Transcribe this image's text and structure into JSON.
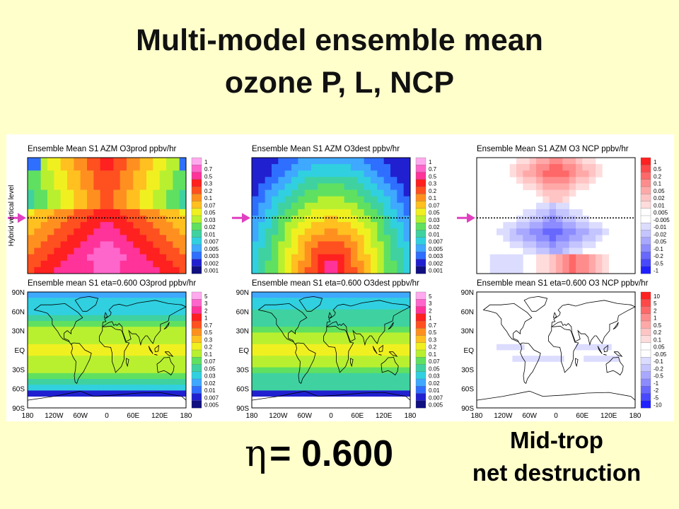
{
  "slide": {
    "title_line1": "Multi-model ensemble mean",
    "title_line2": "ozone P, L, NCP",
    "eta_symbol": "η",
    "eta_text": "= 0.600",
    "note_line1": "Mid-trop",
    "note_line2": "net destruction"
  },
  "colors": {
    "background": "#ffffcc",
    "arrow": "#e040c0",
    "seq_palette": [
      "#101080",
      "#2020d0",
      "#2f6fff",
      "#3fa8ff",
      "#30d0e0",
      "#3fd2a0",
      "#60e060",
      "#b8f030",
      "#f0f020",
      "#ffc020",
      "#ff9020",
      "#ff5020",
      "#ff2020",
      "#ff3399",
      "#ff66cc",
      "#ffaaee"
    ],
    "div_palette": [
      "#2020ff",
      "#4848ff",
      "#6868ff",
      "#8c8cff",
      "#a8a8ff",
      "#c4c4ff",
      "#dcdcff",
      "#ffffff",
      "#ffdcdc",
      "#ffc4c4",
      "#ffa8a8",
      "#ff8c8c",
      "#ff6868",
      "#ff4848",
      "#ff2020"
    ]
  },
  "chart_data": [
    {
      "id": "p1",
      "type": "heatmap",
      "title": "Ensemble Mean S1 AZM O3prod ppbv/hr",
      "ylabel": "Hybrid vertical level",
      "colorbar": [
        "1",
        "0.7",
        "0.5",
        "0.3",
        "0.2",
        "0.1",
        "0.07",
        "0.05",
        "0.03",
        "0.02",
        "0.01",
        "0.007",
        "0.005",
        "0.003",
        "0.002",
        "0.001"
      ],
      "palette": "seq",
      "pattern": "azm-prod",
      "reference_line": "eta=0.600"
    },
    {
      "id": "p2",
      "type": "heatmap",
      "title": "Ensemble Mean S1 AZM O3dest ppbv/hr",
      "colorbar": [
        "1",
        "0.7",
        "0.5",
        "0.3",
        "0.2",
        "0.1",
        "0.07",
        "0.05",
        "0.03",
        "0.02",
        "0.01",
        "0.007",
        "0.005",
        "0.003",
        "0.002",
        "0.001"
      ],
      "palette": "seq",
      "pattern": "azm-dest",
      "reference_line": "eta=0.600"
    },
    {
      "id": "p3",
      "type": "heatmap",
      "title": "Ensemble Mean S1 AZM O3 NCP ppbv/hr",
      "colorbar": [
        "1",
        "0.5",
        "0.2",
        "0.1",
        "0.05",
        "0.02",
        "0.01",
        "0.005",
        "-0.005",
        "-0.01",
        "-0.02",
        "-0.05",
        "-0.1",
        "-0.2",
        "-0.5",
        "-1"
      ],
      "palette": "div",
      "pattern": "azm-ncp",
      "reference_line": "eta=0.600"
    },
    {
      "id": "p4",
      "type": "heatmap",
      "title": "Ensemble mean S1 eta=0.600 O3prod ppbv/hr",
      "x_ticks": [
        "180",
        "120W",
        "60W",
        "0",
        "60E",
        "120E",
        "180"
      ],
      "y_ticks": [
        "90N",
        "60N",
        "30N",
        "EQ",
        "30S",
        "60S",
        "90S"
      ],
      "colorbar": [
        "5",
        "3",
        "2",
        "1",
        "0.7",
        "0.5",
        "0.3",
        "0.2",
        "0.1",
        "0.07",
        "0.05",
        "0.03",
        "0.02",
        "0.01",
        "0.007",
        "0.005"
      ],
      "palette": "seq",
      "pattern": "map-prod"
    },
    {
      "id": "p5",
      "type": "heatmap",
      "title": "Ensemble mean S1 eta=0.600 O3dest ppbv/hr",
      "x_ticks": [
        "180",
        "120W",
        "60W",
        "0",
        "60E",
        "120E",
        "180"
      ],
      "y_ticks": [
        "90N",
        "60N",
        "30N",
        "EQ",
        "30S",
        "60S",
        "90S"
      ],
      "colorbar": [
        "5",
        "3",
        "2",
        "1",
        "0.7",
        "0.5",
        "0.3",
        "0.2",
        "0.1",
        "0.07",
        "0.05",
        "0.03",
        "0.02",
        "0.01",
        "0.007",
        "0.005"
      ],
      "palette": "seq",
      "pattern": "map-dest"
    },
    {
      "id": "p6",
      "type": "heatmap",
      "title": "Ensemble mean S1 eta=0.600 O3 NCP ppbv/hr",
      "x_ticks": [
        "180",
        "120W",
        "60W",
        "0",
        "60E",
        "120E",
        "180"
      ],
      "y_ticks": [
        "90N",
        "60N",
        "30N",
        "EQ",
        "30S",
        "60S",
        "90S"
      ],
      "colorbar": [
        "10",
        "5",
        "2",
        "1",
        "0.5",
        "0.2",
        "0.1",
        "0.05",
        "-0.05",
        "-0.1",
        "-0.2",
        "-0.5",
        "-1",
        "-2",
        "-5",
        "-10"
      ],
      "palette": "div",
      "pattern": "map-ncp"
    }
  ]
}
